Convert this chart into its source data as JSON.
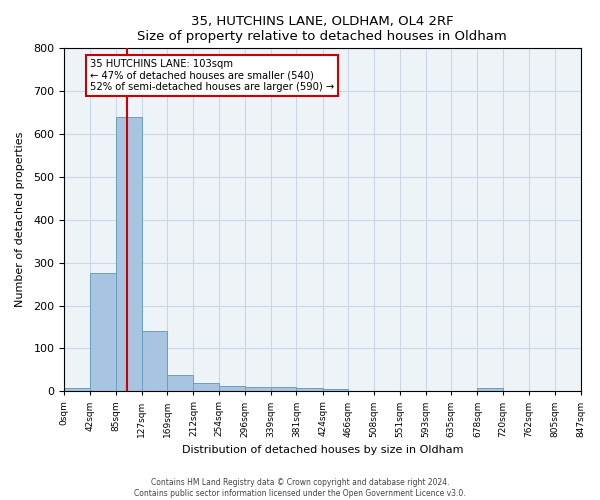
{
  "title": "35, HUTCHINS LANE, OLDHAM, OL4 2RF",
  "subtitle": "Size of property relative to detached houses in Oldham",
  "xlabel": "Distribution of detached houses by size in Oldham",
  "ylabel": "Number of detached properties",
  "bin_edges": [
    0,
    42,
    85,
    127,
    169,
    212,
    254,
    296,
    339,
    381,
    424,
    466,
    508,
    551,
    593,
    635,
    678,
    720,
    762,
    805,
    847
  ],
  "bar_heights": [
    8,
    275,
    640,
    140,
    37,
    20,
    13,
    10,
    10,
    8,
    5,
    0,
    0,
    0,
    0,
    0,
    8,
    0,
    0,
    0
  ],
  "bar_color": "#a8c4e0",
  "bar_edge_color": "#6a9fc0",
  "grid_color": "#c8d8e8",
  "bg_color": "#eef3f8",
  "red_line_x": 103,
  "annotation_text": "35 HUTCHINS LANE: 103sqm\n← 47% of detached houses are smaller (540)\n52% of semi-detached houses are larger (590) →",
  "annotation_box_color": "#ffffff",
  "annotation_box_edge": "#cc0000",
  "annotation_text_color": "#000000",
  "red_line_color": "#cc0000",
  "ylim": [
    0,
    800
  ],
  "footer1": "Contains HM Land Registry data © Crown copyright and database right 2024.",
  "footer2": "Contains public sector information licensed under the Open Government Licence v3.0.",
  "tick_labels": [
    "0sqm",
    "42sqm",
    "85sqm",
    "127sqm",
    "169sqm",
    "212sqm",
    "254sqm",
    "296sqm",
    "339sqm",
    "381sqm",
    "424sqm",
    "466sqm",
    "508sqm",
    "551sqm",
    "593sqm",
    "635sqm",
    "678sqm",
    "720sqm",
    "762sqm",
    "805sqm",
    "847sqm"
  ]
}
